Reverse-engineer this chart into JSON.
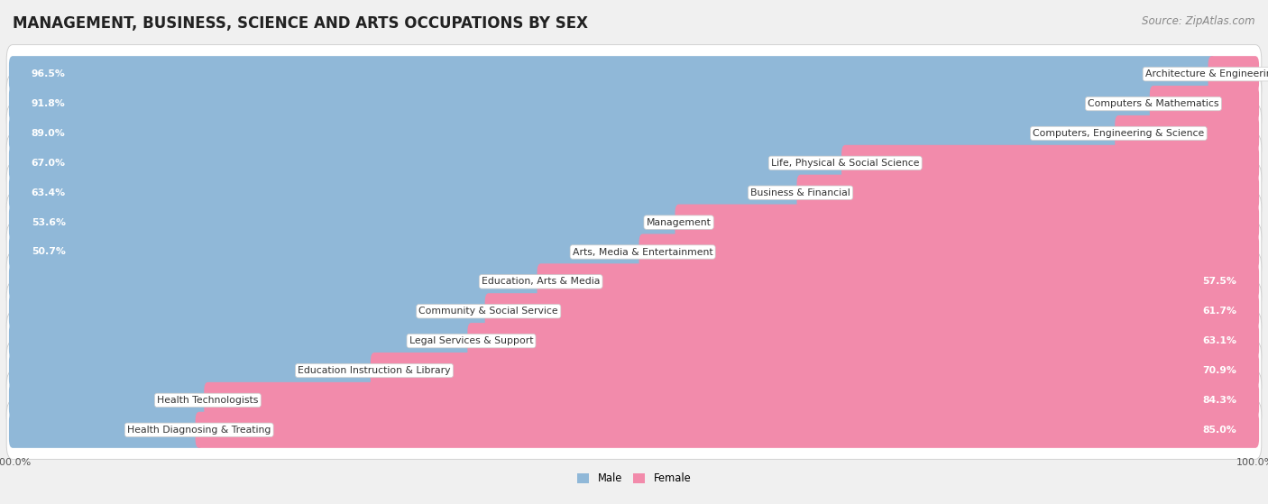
{
  "title": "MANAGEMENT, BUSINESS, SCIENCE AND ARTS OCCUPATIONS BY SEX",
  "source": "Source: ZipAtlas.com",
  "categories": [
    "Architecture & Engineering",
    "Computers & Mathematics",
    "Computers, Engineering & Science",
    "Life, Physical & Social Science",
    "Business & Financial",
    "Management",
    "Arts, Media & Entertainment",
    "Education, Arts & Media",
    "Community & Social Service",
    "Legal Services & Support",
    "Education Instruction & Library",
    "Health Technologists",
    "Health Diagnosing & Treating"
  ],
  "male": [
    96.5,
    91.8,
    89.0,
    67.0,
    63.4,
    53.6,
    50.7,
    42.5,
    38.3,
    36.9,
    29.1,
    15.7,
    15.0
  ],
  "female": [
    3.5,
    8.2,
    11.0,
    33.0,
    36.6,
    46.4,
    49.3,
    57.5,
    61.7,
    63.1,
    70.9,
    84.3,
    85.0
  ],
  "male_color": "#90b8d8",
  "female_color": "#f28bab",
  "bg_color": "#f0f0f0",
  "row_bg_color": "#ffffff",
  "title_fontsize": 12,
  "label_fontsize": 7.8,
  "tick_fontsize": 8,
  "source_fontsize": 8.5
}
